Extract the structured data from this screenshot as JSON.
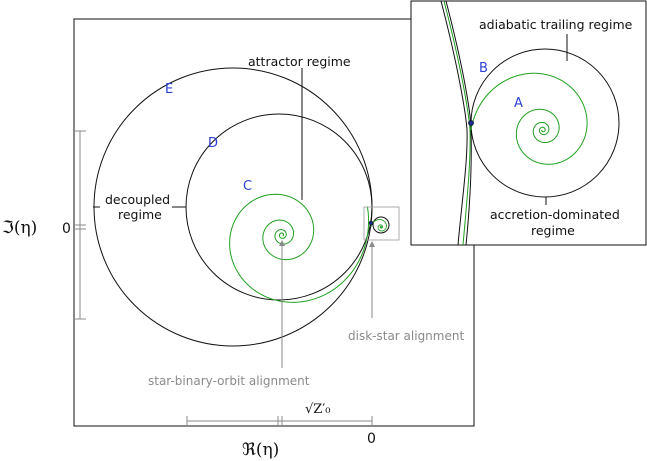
{
  "axes": {
    "x_label": "ℜ(η)",
    "y_label": "ℑ(η)",
    "x_zero": "0",
    "y_zero": "0",
    "scale_label": "√Z′₀"
  },
  "main_labels": {
    "E": "E",
    "D": "D",
    "C": "C",
    "attractor": "attractor regime",
    "decoupled_line1": "decoupled",
    "decoupled_line2": "regime",
    "disk_star": "disk-star alignment",
    "star_binary": "star-binary-orbit alignment"
  },
  "inset_labels": {
    "adiabatic": "adiabatic trailing regime",
    "B": "B",
    "A": "A",
    "accretion_line1": "accretion-dominated",
    "accretion_line2": "regime"
  },
  "colors": {
    "black_curve": "#111111",
    "green_curve": "#1fa01f",
    "blue_label": "#2c3fd6",
    "gray_annotation": "#8a8a8a"
  }
}
